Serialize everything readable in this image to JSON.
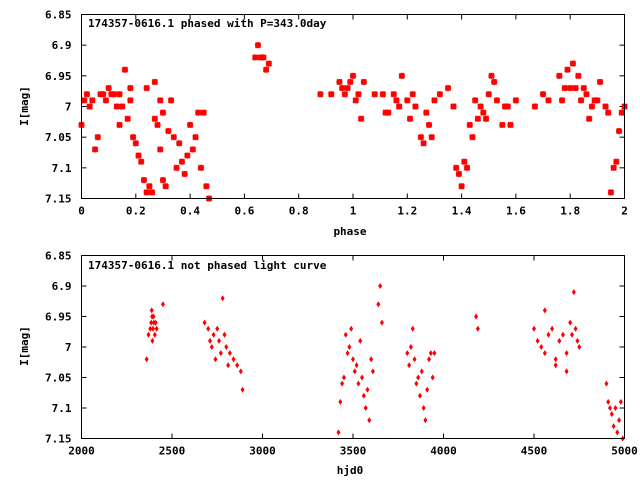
{
  "chart_data": [
    {
      "type": "scatter",
      "title": "174357-0616.1 phased with P=343.0day",
      "xlabel": "phase",
      "ylabel": "I[mag]",
      "xlim": [
        0,
        2
      ],
      "ylim": [
        6.85,
        7.15
      ],
      "y_inverted": true,
      "xticks": [
        "0",
        "0.2",
        "0.4",
        "0.6",
        "0.8",
        "1",
        "1.2",
        "1.4",
        "1.6",
        "1.8",
        "2"
      ],
      "xtick_values": [
        0,
        0.2,
        0.4,
        0.6,
        0.8,
        1,
        1.2,
        1.4,
        1.6,
        1.8,
        2
      ],
      "yticks": [
        "6.85",
        "6.9",
        "6.95",
        "7",
        "7.05",
        "7.1",
        "7.15"
      ],
      "ytick_values": [
        6.85,
        6.9,
        6.95,
        7,
        7.05,
        7.1,
        7.15
      ],
      "grid": false,
      "marker": "star",
      "color": "#ff0000",
      "points": [
        [
          0.0,
          7.03
        ],
        [
          0.01,
          6.99
        ],
        [
          0.02,
          6.98
        ],
        [
          0.03,
          7.0
        ],
        [
          0.04,
          6.99
        ],
        [
          0.05,
          7.07
        ],
        [
          0.06,
          7.05
        ],
        [
          0.07,
          6.98
        ],
        [
          0.08,
          6.98
        ],
        [
          0.09,
          6.99
        ],
        [
          0.1,
          6.97
        ],
        [
          0.11,
          6.98
        ],
        [
          0.12,
          6.98
        ],
        [
          0.13,
          7.0
        ],
        [
          0.14,
          7.03
        ],
        [
          0.15,
          7.0
        ],
        [
          0.16,
          6.94
        ],
        [
          0.17,
          7.02
        ],
        [
          0.18,
          6.97
        ],
        [
          0.19,
          7.05
        ],
        [
          0.2,
          7.06
        ],
        [
          0.21,
          7.08
        ],
        [
          0.22,
          7.09
        ],
        [
          0.23,
          7.12
        ],
        [
          0.24,
          7.14
        ],
        [
          0.25,
          7.13
        ],
        [
          0.26,
          7.14
        ],
        [
          0.27,
          7.02
        ],
        [
          0.28,
          7.03
        ],
        [
          0.29,
          7.07
        ],
        [
          0.3,
          7.12
        ],
        [
          0.31,
          7.13
        ],
        [
          0.32,
          7.04
        ],
        [
          0.33,
          6.99
        ],
        [
          0.34,
          7.05
        ],
        [
          0.35,
          7.1
        ],
        [
          0.36,
          7.06
        ],
        [
          0.37,
          7.09
        ],
        [
          0.38,
          7.11
        ],
        [
          0.39,
          7.08
        ],
        [
          0.4,
          7.03
        ],
        [
          0.41,
          7.07
        ],
        [
          0.42,
          7.05
        ],
        [
          0.43,
          7.01
        ],
        [
          0.44,
          7.1
        ],
        [
          0.45,
          7.01
        ],
        [
          0.46,
          7.13
        ],
        [
          0.47,
          7.15
        ],
        [
          0.14,
          6.98
        ],
        [
          0.18,
          6.99
        ],
        [
          0.24,
          6.97
        ],
        [
          0.27,
          6.96
        ],
        [
          0.29,
          6.99
        ],
        [
          0.3,
          7.01
        ],
        [
          0.64,
          6.92
        ],
        [
          0.65,
          6.9
        ],
        [
          0.66,
          6.92
        ],
        [
          0.67,
          6.92
        ],
        [
          0.68,
          6.94
        ],
        [
          0.69,
          6.93
        ],
        [
          0.88,
          6.98
        ],
        [
          0.92,
          6.98
        ],
        [
          0.95,
          6.96
        ],
        [
          0.96,
          6.97
        ],
        [
          0.97,
          6.98
        ],
        [
          0.98,
          6.97
        ],
        [
          0.99,
          6.96
        ],
        [
          1.0,
          6.95
        ],
        [
          1.01,
          6.99
        ],
        [
          1.02,
          6.98
        ],
        [
          1.03,
          7.02
        ],
        [
          1.04,
          6.96
        ],
        [
          1.08,
          6.98
        ],
        [
          1.11,
          6.98
        ],
        [
          1.12,
          7.01
        ],
        [
          1.13,
          7.01
        ],
        [
          1.15,
          6.98
        ],
        [
          1.16,
          6.99
        ],
        [
          1.17,
          7.0
        ],
        [
          1.18,
          6.95
        ],
        [
          1.2,
          6.99
        ],
        [
          1.21,
          7.02
        ],
        [
          1.22,
          6.98
        ],
        [
          1.23,
          7.0
        ],
        [
          1.25,
          7.05
        ],
        [
          1.26,
          7.06
        ],
        [
          1.27,
          7.01
        ],
        [
          1.28,
          7.03
        ],
        [
          1.29,
          7.05
        ],
        [
          1.3,
          6.99
        ],
        [
          1.32,
          6.98
        ],
        [
          1.35,
          6.97
        ],
        [
          1.37,
          7.0
        ],
        [
          1.38,
          7.1
        ],
        [
          1.39,
          7.11
        ],
        [
          1.4,
          7.13
        ],
        [
          1.41,
          7.09
        ],
        [
          1.42,
          7.1
        ],
        [
          1.43,
          7.03
        ],
        [
          1.44,
          7.05
        ],
        [
          1.45,
          6.99
        ],
        [
          1.46,
          7.02
        ],
        [
          1.47,
          7.0
        ],
        [
          1.48,
          7.01
        ],
        [
          1.49,
          7.02
        ],
        [
          1.5,
          6.98
        ],
        [
          1.51,
          6.95
        ],
        [
          1.52,
          6.96
        ],
        [
          1.53,
          6.99
        ],
        [
          1.55,
          7.03
        ],
        [
          1.56,
          7.0
        ],
        [
          1.57,
          7.0
        ],
        [
          1.58,
          7.03
        ],
        [
          1.6,
          6.99
        ],
        [
          1.67,
          7.0
        ],
        [
          1.7,
          6.98
        ],
        [
          1.72,
          6.99
        ],
        [
          1.76,
          6.95
        ],
        [
          1.77,
          6.99
        ],
        [
          1.78,
          6.97
        ],
        [
          1.79,
          6.94
        ],
        [
          1.8,
          6.97
        ],
        [
          1.81,
          6.93
        ],
        [
          1.82,
          6.97
        ],
        [
          1.83,
          6.95
        ],
        [
          1.84,
          6.99
        ],
        [
          1.85,
          6.97
        ],
        [
          1.86,
          6.98
        ],
        [
          1.87,
          7.02
        ],
        [
          1.88,
          7.0
        ],
        [
          1.89,
          6.99
        ],
        [
          1.9,
          6.99
        ],
        [
          1.91,
          6.96
        ],
        [
          1.93,
          7.0
        ],
        [
          1.94,
          7.01
        ],
        [
          1.95,
          7.14
        ],
        [
          1.96,
          7.1
        ],
        [
          1.97,
          7.09
        ],
        [
          1.98,
          7.04
        ],
        [
          1.99,
          7.01
        ],
        [
          2.0,
          7.0
        ]
      ]
    },
    {
      "type": "scatter",
      "title": "174357-0616.1 not phased light curve",
      "xlabel": "hjd0",
      "ylabel": "I[mag]",
      "xlim": [
        2000,
        5000
      ],
      "ylim": [
        6.85,
        7.15
      ],
      "y_inverted": true,
      "xticks": [
        "2000",
        "2500",
        "3000",
        "3500",
        "4000",
        "4500",
        "5000"
      ],
      "xtick_values": [
        2000,
        2500,
        3000,
        3500,
        4000,
        4500,
        5000
      ],
      "yticks": [
        "6.85",
        "6.9",
        "6.95",
        "7",
        "7.05",
        "7.1",
        "7.15"
      ],
      "ytick_values": [
        6.85,
        6.9,
        6.95,
        7,
        7.05,
        7.1,
        7.15
      ],
      "grid": false,
      "marker": "diamond",
      "color": "#ff0000",
      "points": [
        [
          2360,
          7.02
        ],
        [
          2370,
          6.98
        ],
        [
          2380,
          6.97
        ],
        [
          2385,
          6.96
        ],
        [
          2390,
          6.95
        ],
        [
          2395,
          6.97
        ],
        [
          2400,
          6.96
        ],
        [
          2405,
          6.98
        ],
        [
          2410,
          6.96
        ],
        [
          2415,
          6.97
        ],
        [
          2388,
          6.94
        ],
        [
          2392,
          6.99
        ],
        [
          2398,
          6.95
        ],
        [
          2450,
          6.93
        ],
        [
          2680,
          6.96
        ],
        [
          2700,
          6.97
        ],
        [
          2710,
          6.99
        ],
        [
          2720,
          7.0
        ],
        [
          2730,
          6.98
        ],
        [
          2740,
          7.02
        ],
        [
          2750,
          6.97
        ],
        [
          2760,
          6.99
        ],
        [
          2770,
          7.01
        ],
        [
          2780,
          6.92
        ],
        [
          2790,
          6.98
        ],
        [
          2800,
          7.0
        ],
        [
          2810,
          7.03
        ],
        [
          2820,
          7.01
        ],
        [
          2840,
          7.02
        ],
        [
          2860,
          7.03
        ],
        [
          2880,
          7.04
        ],
        [
          2890,
          7.07
        ],
        [
          3420,
          7.14
        ],
        [
          3430,
          7.09
        ],
        [
          3440,
          7.06
        ],
        [
          3450,
          7.05
        ],
        [
          3460,
          6.98
        ],
        [
          3470,
          7.01
        ],
        [
          3480,
          7.0
        ],
        [
          3490,
          6.97
        ],
        [
          3500,
          7.02
        ],
        [
          3510,
          7.04
        ],
        [
          3520,
          7.03
        ],
        [
          3530,
          7.06
        ],
        [
          3540,
          6.99
        ],
        [
          3550,
          7.05
        ],
        [
          3560,
          7.08
        ],
        [
          3570,
          7.1
        ],
        [
          3580,
          7.07
        ],
        [
          3590,
          7.12
        ],
        [
          3600,
          7.02
        ],
        [
          3610,
          7.04
        ],
        [
          3650,
          6.9
        ],
        [
          3660,
          6.96
        ],
        [
          3640,
          6.93
        ],
        [
          3800,
          7.01
        ],
        [
          3810,
          7.03
        ],
        [
          3820,
          7.0
        ],
        [
          3830,
          6.97
        ],
        [
          3840,
          7.02
        ],
        [
          3850,
          7.06
        ],
        [
          3860,
          7.05
        ],
        [
          3870,
          7.08
        ],
        [
          3880,
          7.04
        ],
        [
          3890,
          7.1
        ],
        [
          3900,
          7.12
        ],
        [
          3910,
          7.07
        ],
        [
          3920,
          7.02
        ],
        [
          3930,
          7.01
        ],
        [
          3940,
          7.05
        ],
        [
          3950,
          7.01
        ],
        [
          4180,
          6.95
        ],
        [
          4190,
          6.97
        ],
        [
          4500,
          6.97
        ],
        [
          4520,
          6.99
        ],
        [
          4540,
          7.0
        ],
        [
          4560,
          7.01
        ],
        [
          4580,
          6.98
        ],
        [
          4600,
          6.97
        ],
        [
          4620,
          7.02
        ],
        [
          4640,
          6.99
        ],
        [
          4660,
          6.98
        ],
        [
          4680,
          7.01
        ],
        [
          4700,
          6.96
        ],
        [
          4710,
          6.98
        ],
        [
          4720,
          6.91
        ],
        [
          4730,
          6.97
        ],
        [
          4740,
          6.99
        ],
        [
          4750,
          7.0
        ],
        [
          4620,
          7.03
        ],
        [
          4680,
          7.04
        ],
        [
          4560,
          6.94
        ],
        [
          4900,
          7.06
        ],
        [
          4910,
          7.09
        ],
        [
          4920,
          7.1
        ],
        [
          4930,
          7.11
        ],
        [
          4940,
          7.13
        ],
        [
          4950,
          7.1
        ],
        [
          4960,
          7.14
        ],
        [
          4970,
          7.12
        ],
        [
          4980,
          7.09
        ],
        [
          4990,
          7.15
        ]
      ]
    }
  ]
}
